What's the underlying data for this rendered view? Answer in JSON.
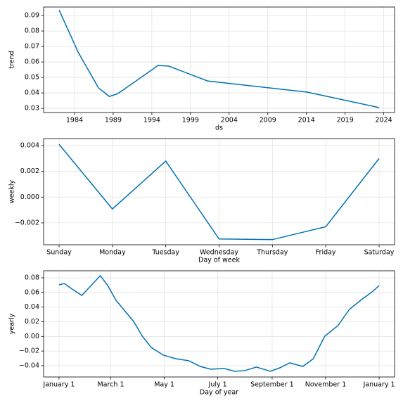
{
  "chart_data": [
    {
      "type": "line",
      "ylabel": "trend",
      "xlabel": "ds",
      "x": [
        1982,
        1984.5,
        1987.1,
        1988.5,
        1989.6,
        1994.8,
        1996.2,
        2001.2,
        2014.1,
        2023.4
      ],
      "series": [
        {
          "name": "trend",
          "color": "#0072b2",
          "values": [
            0.0936,
            0.066,
            0.0432,
            0.0377,
            0.0395,
            0.0577,
            0.0573,
            0.0477,
            0.0405,
            0.0305
          ]
        }
      ],
      "xlim": [
        1980,
        2025.4
      ],
      "xticks": [
        1984,
        1989,
        1994,
        1999,
        2004,
        2009,
        2014,
        2019,
        2024
      ],
      "ylim": [
        0.0273,
        0.0955
      ],
      "yticks": [
        0.03,
        0.04,
        0.05,
        0.06,
        0.07,
        0.08,
        0.09
      ],
      "grid": true
    },
    {
      "type": "line",
      "ylabel": "weekly",
      "xlabel": "Day of week",
      "categories": [
        "Sunday",
        "Monday",
        "Tuesday",
        "Wednesday",
        "Thursday",
        "Friday",
        "Saturday"
      ],
      "series": [
        {
          "name": "weekly",
          "color": "#0072b2",
          "values": [
            0.0041,
            -0.00092,
            0.0028,
            -0.00325,
            -0.0033,
            -0.0023,
            0.003
          ]
        }
      ],
      "ylim": [
        -0.0037,
        0.00455
      ],
      "yticks": [
        {
          "value": -0.002,
          "label": "−0.002"
        },
        {
          "value": 0,
          "label": "0.000"
        },
        0.002,
        0.004
      ],
      "grid": true
    },
    {
      "type": "line",
      "ylabel": "yearly",
      "xlabel": "Day of year",
      "x": [
        0,
        6,
        16,
        26,
        35,
        47,
        55,
        65,
        75,
        85,
        95,
        105,
        119,
        133,
        148,
        161,
        173,
        188,
        200,
        212,
        225,
        241,
        252,
        263,
        278,
        290,
        303,
        318,
        331,
        346,
        358,
        365
      ],
      "series": [
        {
          "name": "yearly",
          "color": "#0072b2",
          "values": [
            0.0704,
            0.0723,
            0.0637,
            0.056,
            0.0675,
            0.0829,
            0.0704,
            0.0493,
            0.0349,
            0.0205,
            0.0003,
            -0.015,
            -0.0256,
            -0.0304,
            -0.0333,
            -0.041,
            -0.0448,
            -0.0438,
            -0.0476,
            -0.0467,
            -0.0419,
            -0.0476,
            -0.0428,
            -0.0361,
            -0.041,
            -0.0304,
            0.0003,
            0.0147,
            0.0368,
            0.0512,
            0.0618,
            0.0694
          ]
        }
      ],
      "xlim": [
        -17.6,
        382.6
      ],
      "xticks": [
        {
          "value": 0,
          "label": "January 1"
        },
        {
          "value": 59,
          "label": "March 1"
        },
        {
          "value": 120,
          "label": "May 1"
        },
        {
          "value": 181,
          "label": "July 1"
        },
        {
          "value": 243,
          "label": "September 1"
        },
        {
          "value": 304,
          "label": "November 1"
        },
        {
          "value": 365,
          "label": "January 1"
        }
      ],
      "ylim": [
        -0.0554,
        0.0896
      ],
      "yticks": [
        {
          "value": -0.04,
          "label": "−0.04"
        },
        {
          "value": -0.02,
          "label": "−0.02"
        },
        {
          "value": 0,
          "label": "0.00"
        },
        0.02,
        0.04,
        0.06,
        0.08
      ],
      "grid": true
    }
  ]
}
